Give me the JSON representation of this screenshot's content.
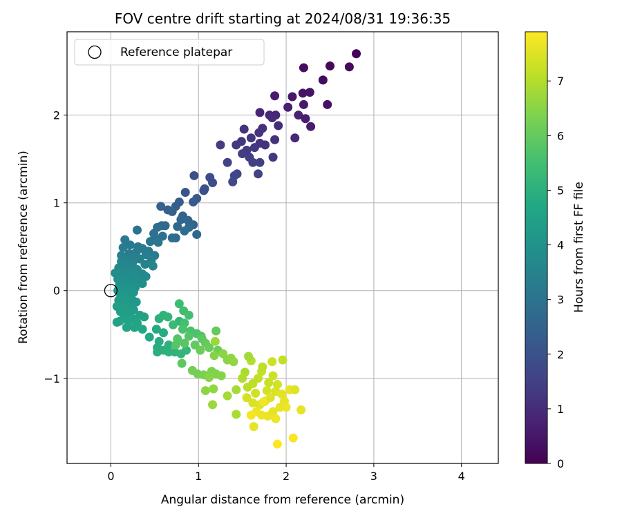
{
  "chart_data": {
    "type": "scatter",
    "title": "FOV centre drift starting at 2024/08/31 19:36:35",
    "xlabel": "Angular distance from reference (arcmin)",
    "ylabel": "Rotation from reference (arcmin)",
    "xlim": [
      -0.5,
      4.42
    ],
    "ylim": [
      -1.97,
      2.95
    ],
    "xticks": [
      0,
      1,
      2,
      3,
      4
    ],
    "yticks": [
      -1,
      0,
      1,
      2
    ],
    "xtick_labels": [
      "0",
      "1",
      "2",
      "3",
      "4"
    ],
    "ytick_labels": [
      "−1",
      "0",
      "1",
      "2"
    ],
    "grid": true,
    "legend": {
      "position": "top-left",
      "entries": [
        "Reference platepar"
      ]
    },
    "reference_point": {
      "x": 0,
      "y": 0
    },
    "colorbar": {
      "label": "Hours from first FF file",
      "min": 0,
      "max": 7.9,
      "ticks": [
        0,
        1,
        2,
        3,
        4,
        5,
        6,
        7
      ],
      "tick_labels": [
        "0",
        "1",
        "2",
        "3",
        "4",
        "5",
        "6",
        "7"
      ],
      "colormap": "viridis"
    },
    "series": [
      {
        "color_by": "hours",
        "points": [
          [
            2.8,
            2.7,
            0.05
          ],
          [
            2.5,
            2.56,
            0.15
          ],
          [
            2.72,
            2.55,
            0.2
          ],
          [
            2.2,
            2.54,
            0.3
          ],
          [
            2.42,
            2.4,
            0.25
          ],
          [
            2.19,
            2.25,
            0.4
          ],
          [
            2.27,
            2.26,
            0.45
          ],
          [
            2.07,
            2.21,
            0.5
          ],
          [
            1.87,
            2.22,
            0.6
          ],
          [
            2.47,
            2.12,
            0.35
          ],
          [
            2.2,
            2.12,
            0.55
          ],
          [
            2.02,
            2.09,
            0.7
          ],
          [
            1.7,
            2.03,
            0.8
          ],
          [
            1.81,
            2.0,
            0.9
          ],
          [
            1.88,
            2.0,
            0.85
          ],
          [
            2.14,
            2.0,
            0.75
          ],
          [
            2.22,
            1.96,
            0.65
          ],
          [
            1.84,
            1.97,
            0.95
          ],
          [
            1.91,
            1.88,
            1.0
          ],
          [
            2.28,
            1.87,
            0.6
          ],
          [
            1.73,
            1.85,
            1.05
          ],
          [
            1.52,
            1.84,
            1.1
          ],
          [
            1.69,
            1.8,
            1.15
          ],
          [
            2.1,
            1.74,
            0.9
          ],
          [
            1.87,
            1.72,
            1.1
          ],
          [
            1.6,
            1.74,
            1.2
          ],
          [
            1.49,
            1.7,
            1.25
          ],
          [
            1.7,
            1.68,
            1.2
          ],
          [
            1.43,
            1.66,
            1.3
          ],
          [
            1.76,
            1.66,
            1.15
          ],
          [
            1.25,
            1.66,
            1.4
          ],
          [
            1.64,
            1.63,
            1.3
          ],
          [
            1.55,
            1.6,
            1.35
          ],
          [
            1.5,
            1.56,
            1.4
          ],
          [
            1.58,
            1.52,
            1.45
          ],
          [
            1.85,
            1.52,
            1.3
          ],
          [
            1.33,
            1.46,
            1.55
          ],
          [
            1.62,
            1.46,
            1.5
          ],
          [
            1.7,
            1.46,
            1.45
          ],
          [
            1.44,
            1.33,
            1.6
          ],
          [
            1.68,
            1.33,
            1.55
          ],
          [
            0.95,
            1.31,
            1.9
          ],
          [
            1.41,
            1.31,
            1.65
          ],
          [
            1.13,
            1.29,
            1.8
          ],
          [
            1.16,
            1.23,
            1.85
          ],
          [
            1.39,
            1.24,
            1.7
          ],
          [
            1.06,
            1.14,
            2.0
          ],
          [
            1.07,
            1.16,
            1.95
          ],
          [
            0.85,
            1.12,
            2.1
          ],
          [
            0.98,
            1.05,
            2.2
          ],
          [
            0.94,
            1.01,
            2.25
          ],
          [
            0.78,
            1.01,
            2.3
          ],
          [
            0.74,
            0.96,
            2.35
          ],
          [
            0.57,
            0.96,
            2.45
          ],
          [
            0.65,
            0.92,
            2.4
          ],
          [
            0.7,
            0.9,
            2.45
          ],
          [
            0.82,
            0.85,
            2.5
          ],
          [
            0.8,
            0.81,
            2.55
          ],
          [
            0.88,
            0.8,
            2.6
          ],
          [
            0.94,
            0.75,
            2.6
          ],
          [
            0.58,
            0.74,
            2.7
          ],
          [
            0.62,
            0.74,
            2.65
          ],
          [
            0.76,
            0.73,
            2.7
          ],
          [
            0.89,
            0.72,
            2.75
          ],
          [
            0.53,
            0.72,
            2.8
          ],
          [
            0.84,
            0.68,
            2.8
          ],
          [
            0.3,
            0.69,
            3.0
          ],
          [
            0.49,
            0.65,
            2.9
          ],
          [
            0.98,
            0.64,
            2.7
          ],
          [
            0.5,
            0.6,
            2.95
          ],
          [
            0.59,
            0.62,
            2.9
          ],
          [
            0.7,
            0.6,
            2.85
          ],
          [
            0.74,
            0.6,
            2.8
          ],
          [
            0.16,
            0.58,
            3.2
          ],
          [
            0.45,
            0.56,
            3.05
          ],
          [
            0.54,
            0.55,
            3.1
          ],
          [
            0.31,
            0.5,
            3.15
          ],
          [
            0.22,
            0.52,
            3.2
          ],
          [
            0.14,
            0.49,
            3.25
          ],
          [
            0.36,
            0.48,
            3.2
          ],
          [
            0.43,
            0.45,
            3.25
          ],
          [
            0.29,
            0.44,
            3.3
          ],
          [
            0.21,
            0.42,
            3.3
          ],
          [
            0.4,
            0.41,
            3.35
          ],
          [
            0.5,
            0.4,
            3.3
          ],
          [
            0.12,
            0.4,
            3.4
          ],
          [
            0.27,
            0.38,
            3.4
          ],
          [
            0.33,
            0.36,
            3.45
          ],
          [
            0.18,
            0.34,
            3.5
          ],
          [
            0.46,
            0.34,
            3.45
          ],
          [
            0.12,
            0.33,
            3.55
          ],
          [
            0.25,
            0.32,
            3.55
          ],
          [
            0.39,
            0.3,
            3.5
          ],
          [
            0.2,
            0.29,
            3.6
          ],
          [
            0.15,
            0.28,
            3.6
          ],
          [
            0.48,
            0.28,
            3.55
          ],
          [
            0.09,
            0.26,
            3.65
          ],
          [
            0.3,
            0.24,
            3.7
          ],
          [
            0.23,
            0.22,
            3.7
          ],
          [
            0.1,
            0.21,
            3.75
          ],
          [
            0.17,
            0.2,
            3.75
          ],
          [
            0.36,
            0.19,
            3.7
          ],
          [
            0.05,
            0.2,
            3.8
          ],
          [
            0.26,
            0.17,
            3.8
          ],
          [
            0.13,
            0.16,
            3.85
          ],
          [
            0.4,
            0.16,
            3.75
          ],
          [
            0.2,
            0.14,
            3.85
          ],
          [
            0.08,
            0.13,
            3.9
          ],
          [
            0.32,
            0.13,
            3.85
          ],
          [
            0.15,
            0.1,
            3.9
          ],
          [
            0.25,
            0.09,
            3.9
          ],
          [
            0.36,
            0.08,
            3.85
          ],
          [
            0.1,
            0.07,
            3.95
          ],
          [
            0.19,
            0.06,
            3.95
          ],
          [
            0.28,
            0.04,
            4.0
          ],
          [
            0.13,
            0.03,
            4.0
          ],
          [
            0.22,
            0.02,
            4.05
          ],
          [
            0.08,
            0.0,
            4.05
          ],
          [
            0.17,
            -0.01,
            4.1
          ],
          [
            0.26,
            -0.02,
            4.1
          ],
          [
            0.11,
            -0.04,
            4.15
          ],
          [
            0.2,
            -0.06,
            4.15
          ],
          [
            0.14,
            -0.08,
            4.2
          ],
          [
            0.24,
            -0.1,
            4.2
          ],
          [
            0.09,
            -0.11,
            4.25
          ],
          [
            0.18,
            -0.13,
            4.25
          ],
          [
            0.29,
            -0.13,
            4.2
          ],
          [
            0.12,
            -0.16,
            4.3
          ],
          [
            0.22,
            -0.17,
            4.3
          ],
          [
            0.07,
            -0.18,
            4.35
          ],
          [
            0.16,
            -0.2,
            4.35
          ],
          [
            0.26,
            -0.22,
            4.35
          ],
          [
            0.11,
            -0.24,
            4.4
          ],
          [
            0.2,
            -0.26,
            4.4
          ],
          [
            0.33,
            -0.28,
            4.45
          ],
          [
            0.15,
            -0.3,
            4.45
          ],
          [
            0.25,
            -0.32,
            4.5
          ],
          [
            0.38,
            -0.3,
            4.5
          ],
          [
            0.1,
            -0.35,
            4.55
          ],
          [
            0.2,
            -0.35,
            4.55
          ],
          [
            0.3,
            -0.37,
            4.6
          ],
          [
            0.07,
            -0.36,
            4.55
          ],
          [
            0.18,
            -0.42,
            4.65
          ],
          [
            0.27,
            -0.42,
            4.65
          ],
          [
            0.36,
            -0.44,
            4.7
          ],
          [
            0.44,
            -0.53,
            4.75
          ],
          [
            0.52,
            -0.44,
            4.8
          ],
          [
            0.6,
            -0.48,
            4.85
          ],
          [
            0.55,
            -0.58,
            4.9
          ],
          [
            0.66,
            -0.62,
            5.0
          ],
          [
            0.53,
            -0.65,
            4.9
          ],
          [
            0.6,
            -0.68,
            5.0
          ],
          [
            0.66,
            -0.7,
            5.05
          ],
          [
            0.53,
            -0.7,
            4.95
          ],
          [
            0.73,
            -0.7,
            5.1
          ],
          [
            0.8,
            -0.72,
            5.15
          ],
          [
            0.86,
            -0.68,
            5.2
          ],
          [
            0.55,
            -0.32,
            5.0
          ],
          [
            0.6,
            -0.28,
            5.1
          ],
          [
            0.65,
            -0.3,
            5.15
          ],
          [
            0.78,
            -0.35,
            5.2
          ],
          [
            0.71,
            -0.39,
            5.3
          ],
          [
            0.78,
            -0.15,
            5.4
          ],
          [
            0.83,
            -0.23,
            5.45
          ],
          [
            0.89,
            -0.28,
            5.5
          ],
          [
            0.84,
            -0.37,
            5.55
          ],
          [
            0.82,
            -0.44,
            5.6
          ],
          [
            0.91,
            -0.46,
            5.6
          ],
          [
            0.98,
            -0.49,
            5.65
          ],
          [
            1.03,
            -0.52,
            5.7
          ],
          [
            0.89,
            -0.52,
            5.75
          ],
          [
            0.76,
            -0.55,
            5.8
          ],
          [
            0.84,
            -0.6,
            5.85
          ],
          [
            0.74,
            -0.62,
            5.8
          ],
          [
            0.96,
            -0.62,
            5.95
          ],
          [
            1.04,
            -0.55,
            5.9
          ],
          [
            1.08,
            -0.6,
            6.0
          ],
          [
            1.12,
            -0.65,
            6.05
          ],
          [
            1.02,
            -0.68,
            6.1
          ],
          [
            1.22,
            -0.68,
            6.15
          ],
          [
            0.81,
            -0.83,
            5.9
          ],
          [
            0.93,
            -0.91,
            6.2
          ],
          [
            0.99,
            -0.95,
            6.25
          ],
          [
            1.06,
            -0.96,
            6.3
          ],
          [
            1.15,
            -0.92,
            6.35
          ],
          [
            1.2,
            -0.95,
            6.4
          ],
          [
            1.26,
            -0.97,
            6.45
          ],
          [
            1.33,
            -0.79,
            6.5
          ],
          [
            1.37,
            -0.77,
            6.55
          ],
          [
            1.4,
            -0.81,
            6.6
          ],
          [
            1.28,
            -0.72,
            6.5
          ],
          [
            1.18,
            -0.74,
            6.45
          ],
          [
            1.19,
            -0.58,
            6.7
          ],
          [
            1.2,
            -0.46,
            6.0
          ],
          [
            1.12,
            -0.99,
            6.5
          ],
          [
            1.08,
            -1.14,
            6.55
          ],
          [
            1.17,
            -1.12,
            6.6
          ],
          [
            1.16,
            -1.3,
            6.7
          ],
          [
            1.33,
            -1.2,
            6.8
          ],
          [
            1.43,
            -1.41,
            6.9
          ],
          [
            1.43,
            -1.13,
            6.85
          ],
          [
            1.53,
            -0.93,
            6.9
          ],
          [
            1.6,
            -0.8,
            7.0
          ],
          [
            1.5,
            -1.0,
            6.95
          ],
          [
            1.56,
            -1.1,
            7.05
          ],
          [
            1.62,
            -1.06,
            7.1
          ],
          [
            1.68,
            -1.0,
            7.15
          ],
          [
            1.72,
            -0.92,
            7.2
          ],
          [
            1.8,
            -1.05,
            7.25
          ],
          [
            1.85,
            -0.97,
            7.3
          ],
          [
            1.9,
            -1.07,
            7.35
          ],
          [
            1.78,
            -1.14,
            7.4
          ],
          [
            1.65,
            -1.17,
            7.35
          ],
          [
            1.55,
            -1.22,
            7.4
          ],
          [
            1.62,
            -1.28,
            7.45
          ],
          [
            1.7,
            -1.3,
            7.5
          ],
          [
            1.76,
            -1.26,
            7.55
          ],
          [
            1.82,
            -1.22,
            7.5
          ],
          [
            1.88,
            -1.15,
            7.45
          ],
          [
            1.95,
            -1.18,
            7.55
          ],
          [
            1.98,
            -1.26,
            7.6
          ],
          [
            2.04,
            -1.13,
            7.65
          ],
          [
            2.0,
            -1.33,
            7.7
          ],
          [
            1.93,
            -1.33,
            7.65
          ],
          [
            1.85,
            -1.38,
            7.6
          ],
          [
            1.79,
            -1.43,
            7.65
          ],
          [
            1.72,
            -1.42,
            7.7
          ],
          [
            1.66,
            -1.38,
            7.7
          ],
          [
            1.63,
            -1.55,
            7.6
          ],
          [
            1.74,
            -1.27,
            7.75
          ],
          [
            1.88,
            -1.46,
            7.7
          ],
          [
            2.17,
            -1.36,
            7.6
          ],
          [
            2.1,
            -1.13,
            7.5
          ],
          [
            1.84,
            -0.81,
            7.3
          ],
          [
            1.96,
            -0.79,
            7.2
          ],
          [
            1.73,
            -0.87,
            7.1
          ],
          [
            1.57,
            -0.75,
            6.8
          ],
          [
            1.9,
            -1.75,
            7.9
          ],
          [
            2.08,
            -1.68,
            7.85
          ],
          [
            1.6,
            -1.42,
            7.8
          ]
        ]
      }
    ]
  }
}
